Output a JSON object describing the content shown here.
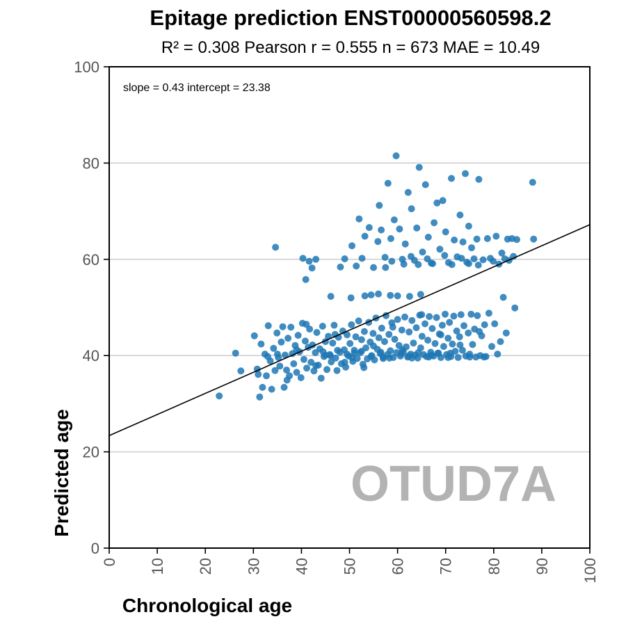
{
  "chart_data": {
    "type": "scatter",
    "title": "Epitage prediction ENST00000560598.2",
    "subtitle": "R² = 0.308   Pearson r = 0.555   n = 673   MAE = 10.49",
    "xlabel": "Chronological age",
    "ylabel": "Predicted age",
    "xlim": [
      0,
      100
    ],
    "ylim": [
      0,
      100
    ],
    "xticks": [
      "0",
      "10",
      "20",
      "30",
      "40",
      "50",
      "60",
      "70",
      "80",
      "90",
      "100"
    ],
    "yticks": [
      "0",
      "20",
      "40",
      "60",
      "80",
      "100"
    ],
    "grid": "horizontal",
    "annotation": "slope = 0.43   intercept = 23.38",
    "gene_label": "OTUD7A",
    "reference_line_x": 100,
    "fit_line": {
      "slope": 0.43,
      "intercept": 23.38
    },
    "point_color": "#1f77b4",
    "watermark_color": "#b3b3b3",
    "series": [
      {
        "values": [
          [
            22.9,
            31.6
          ],
          [
            26.3,
            40.5
          ],
          [
            27.4,
            36.8
          ],
          [
            30.2,
            44.1
          ],
          [
            30.8,
            37.2
          ],
          [
            31.3,
            31.4
          ],
          [
            31.6,
            42.4
          ],
          [
            31.9,
            33.4
          ],
          [
            32.4,
            40.3
          ],
          [
            32.7,
            35.8
          ],
          [
            33.1,
            46.2
          ],
          [
            33.5,
            38.9
          ],
          [
            33.8,
            33.0
          ],
          [
            34.2,
            41.5
          ],
          [
            34.5,
            36.9
          ],
          [
            34.6,
            62.5
          ],
          [
            34.9,
            44.7
          ],
          [
            35.2,
            39.6
          ],
          [
            35.5,
            37.8
          ],
          [
            35.8,
            42.8
          ],
          [
            36.1,
            46.0
          ],
          [
            36.4,
            33.4
          ],
          [
            36.6,
            40.1
          ],
          [
            36.9,
            37.0
          ],
          [
            37.2,
            43.6
          ],
          [
            37.5,
            35.8
          ],
          [
            37.8,
            45.9
          ],
          [
            38.1,
            40.4
          ],
          [
            38.4,
            38.3
          ],
          [
            38.7,
            42.1
          ],
          [
            39.0,
            36.5
          ],
          [
            39.3,
            44.2
          ],
          [
            39.6,
            40.8
          ],
          [
            39.9,
            35.4
          ],
          [
            40.2,
            46.7
          ],
          [
            40.3,
            60.2
          ],
          [
            40.5,
            39.2
          ],
          [
            40.8,
            43.0
          ],
          [
            40.9,
            55.8
          ],
          [
            41.1,
            37.4
          ],
          [
            41.4,
            41.7
          ],
          [
            41.6,
            59.6
          ],
          [
            41.7,
            45.5
          ],
          [
            42.0,
            38.6
          ],
          [
            42.2,
            58.2
          ],
          [
            42.3,
            42.2
          ],
          [
            42.6,
            36.8
          ],
          [
            42.9,
            40.6
          ],
          [
            43.0,
            60.0
          ],
          [
            43.2,
            44.8
          ],
          [
            43.5,
            38.0
          ],
          [
            43.8,
            41.4
          ],
          [
            44.1,
            35.3
          ],
          [
            44.4,
            46.1
          ],
          [
            44.7,
            39.8
          ],
          [
            45.0,
            42.9
          ],
          [
            45.3,
            37.1
          ],
          [
            45.6,
            44.0
          ],
          [
            45.9,
            40.2
          ],
          [
            46.1,
            52.3
          ],
          [
            46.2,
            38.7
          ],
          [
            46.5,
            42.6
          ],
          [
            46.8,
            46.3
          ],
          [
            47.1,
            39.5
          ],
          [
            47.4,
            36.9
          ],
          [
            47.7,
            43.8
          ],
          [
            48.0,
            40.7
          ],
          [
            48.1,
            58.4
          ],
          [
            48.3,
            38.3
          ],
          [
            48.6,
            45.1
          ],
          [
            48.9,
            41.2
          ],
          [
            49.0,
            60.1
          ],
          [
            49.2,
            37.6
          ],
          [
            49.5,
            44.3
          ],
          [
            49.8,
            39.9
          ],
          [
            50.1,
            42.5
          ],
          [
            50.4,
            46.4
          ],
          [
            50.5,
            62.8
          ],
          [
            50.7,
            38.8
          ],
          [
            51.0,
            41.1
          ],
          [
            51.3,
            43.9
          ],
          [
            51.4,
            58.6
          ],
          [
            51.6,
            39.4
          ],
          [
            51.9,
            47.2
          ],
          [
            52.0,
            68.4
          ],
          [
            52.2,
            40.6
          ],
          [
            52.5,
            43.3
          ],
          [
            52.6,
            60.2
          ],
          [
            52.8,
            38.2
          ],
          [
            53.1,
            45.0
          ],
          [
            53.2,
            64.8
          ],
          [
            53.4,
            41.6
          ],
          [
            53.7,
            39.3
          ],
          [
            54.0,
            46.9
          ],
          [
            54.1,
            66.6
          ],
          [
            54.3,
            42.8
          ],
          [
            54.6,
            40.0
          ],
          [
            54.9,
            44.6
          ],
          [
            55.0,
            58.3
          ],
          [
            55.2,
            39.1
          ],
          [
            55.5,
            47.8
          ],
          [
            55.8,
            41.3
          ],
          [
            55.9,
            63.7
          ],
          [
            56.1,
            43.7
          ],
          [
            56.2,
            71.2
          ],
          [
            56.4,
            40.4
          ],
          [
            56.6,
            66.1
          ],
          [
            56.7,
            45.7
          ],
          [
            57.0,
            39.7
          ],
          [
            57.3,
            42.9
          ],
          [
            57.4,
            60.4
          ],
          [
            57.6,
            48.3
          ],
          [
            57.9,
            40.2
          ],
          [
            58.0,
            75.8
          ],
          [
            58.2,
            44.4
          ],
          [
            58.5,
            41.0
          ],
          [
            58.6,
            64.3
          ],
          [
            58.8,
            46.8
          ],
          [
            59.1,
            39.6
          ],
          [
            59.3,
            68.2
          ],
          [
            59.4,
            43.4
          ],
          [
            59.7,
            81.5
          ],
          [
            59.8,
            40.6
          ],
          [
            60.0,
            47.5
          ],
          [
            60.3,
            42.1
          ],
          [
            60.4,
            66.3
          ],
          [
            60.6,
            39.9
          ],
          [
            60.9,
            45.3
          ],
          [
            61.0,
            60.0
          ],
          [
            61.2,
            40.8
          ],
          [
            61.5,
            48.0
          ],
          [
            61.6,
            63.2
          ],
          [
            61.8,
            41.8
          ],
          [
            62.1,
            39.7
          ],
          [
            62.2,
            73.9
          ],
          [
            62.4,
            44.9
          ],
          [
            62.7,
            40.3
          ],
          [
            62.9,
            70.5
          ],
          [
            63.0,
            47.3
          ],
          [
            63.3,
            42.6
          ],
          [
            63.5,
            59.8
          ],
          [
            63.6,
            40.1
          ],
          [
            63.9,
            45.8
          ],
          [
            64.0,
            66.5
          ],
          [
            64.2,
            39.5
          ],
          [
            64.5,
            79.1
          ],
          [
            64.6,
            48.4
          ],
          [
            64.8,
            41.6
          ],
          [
            65.1,
            44.0
          ],
          [
            65.2,
            61.5
          ],
          [
            65.4,
            40.2
          ],
          [
            65.7,
            46.6
          ],
          [
            65.8,
            75.5
          ],
          [
            66.0,
            39.8
          ],
          [
            66.3,
            43.2
          ],
          [
            66.4,
            64.6
          ],
          [
            66.6,
            48.1
          ],
          [
            66.9,
            40.7
          ],
          [
            67.0,
            59.2
          ],
          [
            67.2,
            45.6
          ],
          [
            67.5,
            39.9
          ],
          [
            67.6,
            67.6
          ],
          [
            67.8,
            42.5
          ],
          [
            68.1,
            47.9
          ],
          [
            68.2,
            71.7
          ],
          [
            68.4,
            40.5
          ],
          [
            68.7,
            44.5
          ],
          [
            68.8,
            62.1
          ],
          [
            69.0,
            39.6
          ],
          [
            69.3,
            46.3
          ],
          [
            69.4,
            72.2
          ],
          [
            69.6,
            41.9
          ],
          [
            69.9,
            48.6
          ],
          [
            70.0,
            65.7
          ],
          [
            70.2,
            40.2
          ],
          [
            70.5,
            43.6
          ],
          [
            70.6,
            59.3
          ],
          [
            70.8,
            46.9
          ],
          [
            71.1,
            39.8
          ],
          [
            71.2,
            76.8
          ],
          [
            71.4,
            42.4
          ],
          [
            71.7,
            48.2
          ],
          [
            71.8,
            64.0
          ],
          [
            72.0,
            40.9
          ],
          [
            72.3,
            45.1
          ],
          [
            72.4,
            60.5
          ],
          [
            72.6,
            39.6
          ],
          [
            72.9,
            43.9
          ],
          [
            73.0,
            69.2
          ],
          [
            73.2,
            48.5
          ],
          [
            73.5,
            41.1
          ],
          [
            73.6,
            63.6
          ],
          [
            73.8,
            46.2
          ],
          [
            74.1,
            77.8
          ],
          [
            74.2,
            39.9
          ],
          [
            74.4,
            59.4
          ],
          [
            74.7,
            44.7
          ],
          [
            74.8,
            66.9
          ],
          [
            75.0,
            40.3
          ],
          [
            75.3,
            48.6
          ],
          [
            75.4,
            62.4
          ],
          [
            75.6,
            42.3
          ],
          [
            75.9,
            60.1
          ],
          [
            76.0,
            45.5
          ],
          [
            76.3,
            39.7
          ],
          [
            76.5,
            64.2
          ],
          [
            76.6,
            48.3
          ],
          [
            76.9,
            76.6
          ],
          [
            77.2,
            40.0
          ],
          [
            77.5,
            44.1
          ],
          [
            77.8,
            59.9
          ],
          [
            78.1,
            46.4
          ],
          [
            78.4,
            39.8
          ],
          [
            78.7,
            64.3
          ],
          [
            79.0,
            48.8
          ],
          [
            79.3,
            60.2
          ],
          [
            79.6,
            41.9
          ],
          [
            79.9,
            59.6
          ],
          [
            80.2,
            46.6
          ],
          [
            80.5,
            64.8
          ],
          [
            80.8,
            40.3
          ],
          [
            81.1,
            59.0
          ],
          [
            81.4,
            42.9
          ],
          [
            81.7,
            61.3
          ],
          [
            82.0,
            52.1
          ],
          [
            82.3,
            60.1
          ],
          [
            82.6,
            44.7
          ],
          [
            82.9,
            64.2
          ],
          [
            83.2,
            59.8
          ],
          [
            83.8,
            64.3
          ],
          [
            84.1,
            60.6
          ],
          [
            84.4,
            49.9
          ],
          [
            84.8,
            64.1
          ],
          [
            88.1,
            76.0
          ],
          [
            88.3,
            64.2
          ],
          [
            31.0,
            36.1
          ],
          [
            33.0,
            39.8
          ],
          [
            35.0,
            40.3
          ],
          [
            37.0,
            34.9
          ],
          [
            39.0,
            41.2
          ],
          [
            41.0,
            46.5
          ],
          [
            43.0,
            37.9
          ],
          [
            45.0,
            40.1
          ],
          [
            47.0,
            44.4
          ],
          [
            49.0,
            38.6
          ],
          [
            51.0,
            40.5
          ],
          [
            53.0,
            37.5
          ],
          [
            55.0,
            42.0
          ],
          [
            57.0,
            39.4
          ],
          [
            59.0,
            45.9
          ],
          [
            61.0,
            41.2
          ],
          [
            63.0,
            39.5
          ],
          [
            65.0,
            48.5
          ],
          [
            67.0,
            40.1
          ],
          [
            69.0,
            44.3
          ],
          [
            71.0,
            40.5
          ],
          [
            73.0,
            42.2
          ],
          [
            75.0,
            39.7
          ],
          [
            77.0,
            45.0
          ],
          [
            78.0,
            39.7
          ],
          [
            44.5,
            40.8
          ],
          [
            46.0,
            40.0
          ],
          [
            47.5,
            41.1
          ],
          [
            49.5,
            40.3
          ],
          [
            50.5,
            39.6
          ],
          [
            52.5,
            40.9
          ],
          [
            54.5,
            39.8
          ],
          [
            56.5,
            40.7
          ],
          [
            58.3,
            39.5
          ],
          [
            60.8,
            40.4
          ],
          [
            62.3,
            39.9
          ],
          [
            64.3,
            40.6
          ],
          [
            66.5,
            39.7
          ],
          [
            68.5,
            40.5
          ],
          [
            70.5,
            39.6
          ],
          [
            54.5,
            52.6
          ],
          [
            56.0,
            52.8
          ],
          [
            58.5,
            52.5
          ],
          [
            60.0,
            52.4
          ],
          [
            62.5,
            52.3
          ],
          [
            64.8,
            52.7
          ],
          [
            53.2,
            52.4
          ],
          [
            50.3,
            52.0
          ],
          [
            57.5,
            58.3
          ],
          [
            58.8,
            59.6
          ],
          [
            61.3,
            59.0
          ],
          [
            62.8,
            60.6
          ],
          [
            64.3,
            58.9
          ],
          [
            66.2,
            60.1
          ],
          [
            67.3,
            59.1
          ],
          [
            69.8,
            60.8
          ],
          [
            71.3,
            58.9
          ],
          [
            73.3,
            60.2
          ],
          [
            74.8,
            59.1
          ],
          [
            76.8,
            58.8
          ]
        ]
      }
    ]
  }
}
